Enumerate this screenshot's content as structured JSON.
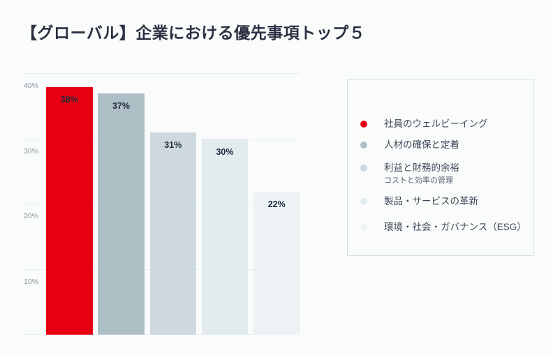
{
  "title": "【グローバル】企業における優先事項トップ５",
  "colors": {
    "background": "#fafcfb",
    "title_text": "#2b3143",
    "grid_line": "#e4eef1",
    "tick_text": "#8695a0",
    "value_label_text": "#1f2a3d",
    "legend_border": "#d5e1e7",
    "legend_text": "#3c4957",
    "legend_subtext": "#566470",
    "accent_red": "#e60012"
  },
  "chart_data": {
    "type": "bar",
    "title": "【グローバル】企業における優先事項トップ５",
    "categories": [
      "社員のウェルビーイング",
      "人材の確保と定着",
      "利益と財務的余裕（コストと効率の管理）",
      "製品・サービスの革新",
      "環境・社会・ガバナンス（ESG）"
    ],
    "values": [
      38,
      37,
      31,
      30,
      22
    ],
    "value_labels": [
      "38%",
      "37%",
      "31%",
      "30%",
      "22%"
    ],
    "bar_colors": [
      "#e60012",
      "#aebfc6",
      "#cdd9de",
      "#e2ebee",
      "#edf3f5"
    ],
    "xlabel": "",
    "ylabel": "",
    "ylim": [
      0,
      42
    ],
    "yticks": [
      {
        "value": 40,
        "label": "40%"
      },
      {
        "value": 30,
        "label": "30%"
      },
      {
        "value": 20,
        "label": "20%"
      },
      {
        "value": 10,
        "label": "10%"
      }
    ],
    "grid": true,
    "legend_position": "right"
  },
  "legend": {
    "items": [
      {
        "label": "社員のウェルビーイング",
        "sublabel": "",
        "color": "#e60012"
      },
      {
        "label": "人材の確保と定着",
        "sublabel": "",
        "color": "#aebfc6"
      },
      {
        "label": "利益と財務的余裕",
        "sublabel": "コストと効率の管理",
        "color": "#cdd9de"
      },
      {
        "label": "製品・サービスの革新",
        "sublabel": "",
        "color": "#e2ebee"
      },
      {
        "label": "環境・社会・ガバナンス（ESG）",
        "sublabel": "",
        "color": "#edf3f5"
      }
    ]
  }
}
